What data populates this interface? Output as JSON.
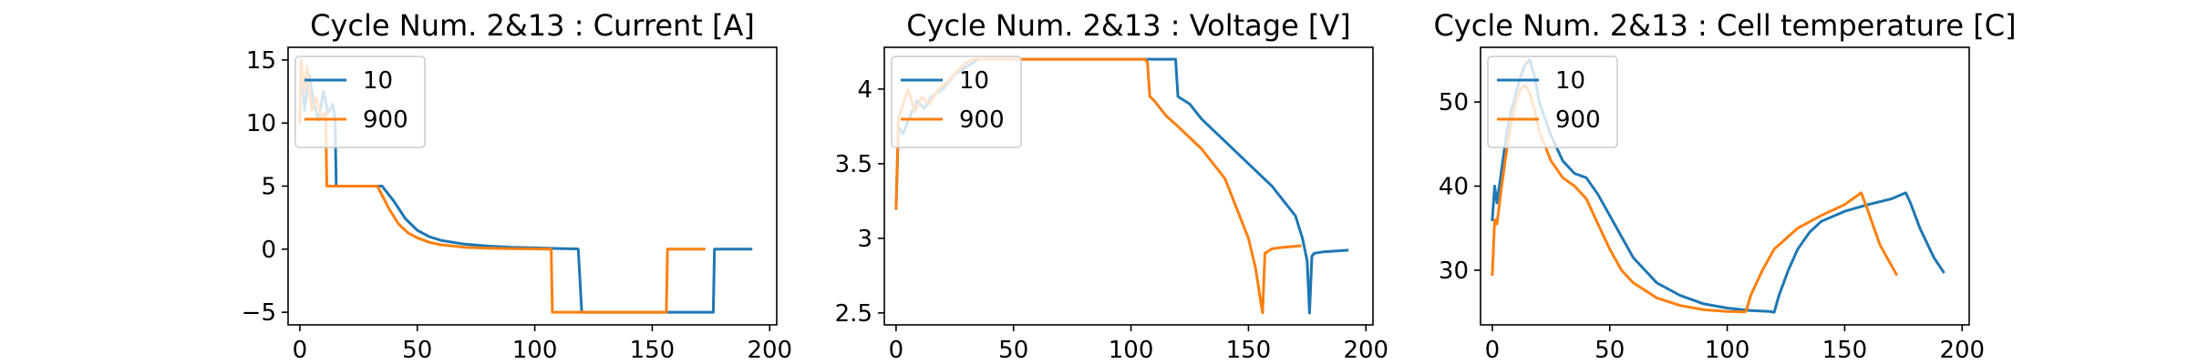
{
  "figure": {
    "background": "#ffffff",
    "series_colors": [
      "#1f77b4",
      "#ff7f0e"
    ]
  },
  "chart_data": [
    {
      "type": "line",
      "title": "Cycle Num. 2&13 : Current [A]",
      "xlabel": "",
      "ylabel": "",
      "xlim": [
        -5,
        203
      ],
      "ylim": [
        -6,
        16
      ],
      "xticks": [
        0,
        50,
        100,
        150,
        200
      ],
      "yticks": [
        -5,
        0,
        5,
        10,
        15
      ],
      "grid": false,
      "legend": "top-left",
      "series": [
        {
          "name": "10",
          "color": "#1f77b4",
          "x": [
            0,
            0.5,
            2,
            4,
            6,
            8,
            10,
            12,
            14,
            15,
            15.5,
            16,
            35,
            40,
            45,
            50,
            55,
            60,
            70,
            80,
            90,
            100,
            110,
            118,
            118.5,
            120,
            140,
            160,
            176,
            176.5,
            185,
            192
          ],
          "y": [
            10,
            15,
            11,
            13.8,
            11.5,
            10.2,
            12.5,
            10.8,
            11.5,
            10.5,
            5,
            5,
            5,
            3.8,
            2.4,
            1.5,
            1.0,
            0.7,
            0.4,
            0.25,
            0.15,
            0.1,
            0.05,
            0.02,
            0,
            -5,
            -5,
            -5,
            -5,
            0,
            0,
            0
          ]
        },
        {
          "name": "900",
          "color": "#ff7f0e",
          "x": [
            0,
            0.5,
            2,
            3,
            5,
            7,
            9,
            11,
            11.5,
            12,
            33,
            38,
            42,
            46,
            50,
            55,
            60,
            70,
            80,
            90,
            100,
            106,
            107,
            107.5,
            120,
            140,
            156,
            156.5,
            165,
            172
          ],
          "y": [
            10,
            15,
            12.5,
            14.5,
            11,
            12,
            10.5,
            10.8,
            5,
            5,
            5,
            3.2,
            2.0,
            1.3,
            0.9,
            0.55,
            0.35,
            0.15,
            0.08,
            0.04,
            0.02,
            0,
            0,
            -5,
            -5,
            -5,
            -5,
            0,
            0,
            0
          ]
        }
      ]
    },
    {
      "type": "line",
      "title": "Cycle Num. 2&13 : Voltage [V]",
      "xlabel": "",
      "ylabel": "",
      "xlim": [
        -5,
        203
      ],
      "ylim": [
        2.42,
        4.28
      ],
      "xticks": [
        0,
        50,
        100,
        150,
        200
      ],
      "yticks": [
        2.5,
        3.0,
        3.5,
        4.0
      ],
      "grid": false,
      "legend": "top-left",
      "series": [
        {
          "name": "10",
          "color": "#1f77b4",
          "x": [
            0,
            1,
            3,
            6,
            9,
            12,
            15,
            20,
            25,
            30,
            35,
            40,
            60,
            80,
            100,
            115,
            119,
            120,
            125,
            130,
            140,
            150,
            160,
            165,
            170,
            173,
            175,
            176,
            177,
            178,
            182,
            192
          ],
          "y": [
            3.2,
            3.75,
            3.7,
            3.82,
            3.92,
            3.87,
            3.95,
            4.0,
            4.1,
            4.15,
            4.2,
            4.2,
            4.2,
            4.2,
            4.2,
            4.2,
            4.2,
            3.95,
            3.9,
            3.8,
            3.65,
            3.5,
            3.35,
            3.25,
            3.15,
            3.0,
            2.85,
            2.5,
            2.88,
            2.9,
            2.91,
            2.92
          ]
        },
        {
          "name": "900",
          "color": "#ff7f0e",
          "x": [
            0,
            1,
            3,
            5,
            8,
            11,
            14,
            18,
            22,
            26,
            30,
            33,
            40,
            60,
            80,
            100,
            106,
            107,
            108,
            110,
            115,
            120,
            130,
            140,
            145,
            150,
            153,
            155,
            156,
            157,
            160,
            165,
            172
          ],
          "y": [
            3.2,
            3.8,
            3.9,
            4.0,
            3.85,
            3.95,
            3.9,
            4.0,
            4.05,
            4.12,
            4.18,
            4.2,
            4.2,
            4.2,
            4.2,
            4.2,
            4.2,
            4.18,
            3.95,
            3.92,
            3.82,
            3.75,
            3.6,
            3.4,
            3.2,
            3.0,
            2.8,
            2.6,
            2.5,
            2.9,
            2.93,
            2.94,
            2.95
          ]
        }
      ]
    },
    {
      "type": "line",
      "title": "Cycle Num. 2&13 : Cell temperature [C]",
      "xlabel": "",
      "ylabel": "",
      "xlim": [
        -5,
        203
      ],
      "ylim": [
        23.5,
        56.5
      ],
      "xticks": [
        0,
        50,
        100,
        150,
        200
      ],
      "yticks": [
        30,
        40,
        50
      ],
      "grid": false,
      "legend": "top-left",
      "series": [
        {
          "name": "10",
          "color": "#1f77b4",
          "x": [
            0,
            1,
            2,
            4,
            6,
            8,
            10,
            12,
            14,
            16,
            18,
            20,
            25,
            30,
            35,
            40,
            45,
            50,
            55,
            60,
            70,
            80,
            90,
            100,
            110,
            118,
            120,
            122,
            126,
            130,
            135,
            140,
            150,
            160,
            170,
            176,
            178,
            182,
            188,
            192
          ],
          "y": [
            36,
            40,
            38,
            42,
            46,
            49,
            51,
            53,
            54.5,
            55,
            53,
            50,
            46,
            43,
            41.5,
            41,
            39,
            36.5,
            34,
            31.5,
            28.5,
            27,
            26,
            25.5,
            25.2,
            25.1,
            25,
            27,
            30,
            32.5,
            34.5,
            35.8,
            37,
            37.8,
            38.5,
            39.2,
            38,
            35,
            31.5,
            29.8
          ]
        },
        {
          "name": "900",
          "color": "#ff7f0e",
          "x": [
            0,
            1,
            2,
            4,
            6,
            8,
            10,
            12,
            14,
            16,
            18,
            20,
            25,
            30,
            35,
            40,
            45,
            50,
            55,
            60,
            70,
            80,
            90,
            100,
            107,
            108,
            110,
            115,
            120,
            130,
            140,
            150,
            155,
            157,
            160,
            165,
            170,
            172
          ],
          "y": [
            29.5,
            36,
            35.5,
            40,
            44,
            47.5,
            50,
            51.5,
            52,
            51,
            49,
            46.5,
            43,
            41,
            40,
            38.5,
            35.5,
            32.5,
            30,
            28.5,
            26.7,
            25.8,
            25.3,
            25.1,
            25.05,
            25.1,
            27,
            30,
            32.5,
            35,
            36.5,
            37.8,
            38.8,
            39.2,
            37,
            33,
            30.5,
            29.5
          ]
        }
      ]
    }
  ]
}
